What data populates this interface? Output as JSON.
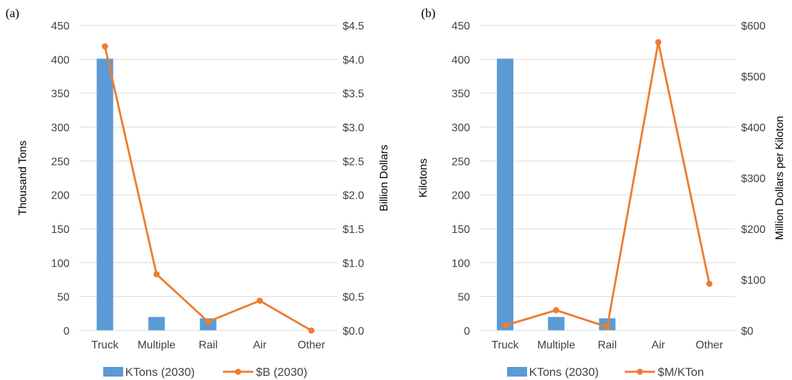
{
  "chart_data": [
    {
      "type": "bar",
      "panel_label": "(a)",
      "categories": [
        "Truck",
        "Multiple",
        "Rail",
        "Air",
        "Other"
      ],
      "series": [
        {
          "name": "KTons (2030)",
          "kind": "bar",
          "axis": "left",
          "color": "#5b9bd5",
          "values": [
            401,
            20,
            18,
            0,
            0
          ]
        },
        {
          "name": "$B (2030)",
          "kind": "line",
          "axis": "right",
          "color": "#ed7d31",
          "values": [
            4.19,
            0.83,
            0.13,
            0.44,
            0.0
          ]
        }
      ],
      "ylabel": "Thousand Tons",
      "y2label": "Billion Dollars",
      "ylim": [
        0,
        450
      ],
      "y2lim": [
        0,
        4.5
      ],
      "yticks": [
        "0",
        "50",
        "100",
        "150",
        "200",
        "250",
        "300",
        "350",
        "400",
        "450"
      ],
      "y2ticks": [
        "$0.0",
        "$0.5",
        "$1.0",
        "$1.5",
        "$2.0",
        "$2.5",
        "$3.0",
        "$3.5",
        "$4.0",
        "$4.5"
      ],
      "grid": true,
      "legend": "bottom"
    },
    {
      "type": "bar",
      "panel_label": "(b)",
      "categories": [
        "Truck",
        "Multiple",
        "Rail",
        "Air",
        "Other"
      ],
      "series": [
        {
          "name": "KTons (2030)",
          "kind": "bar",
          "axis": "left",
          "color": "#5b9bd5",
          "values": [
            401,
            20,
            18,
            0,
            0
          ]
        },
        {
          "name": "$M/KTon",
          "kind": "line",
          "axis": "right",
          "color": "#ed7d31",
          "values": [
            10,
            40,
            7,
            567,
            92
          ]
        }
      ],
      "ylabel": "Kilotons",
      "y2label": "Million Dollars per Kiloton",
      "ylim": [
        0,
        450
      ],
      "y2lim": [
        0,
        600
      ],
      "yticks": [
        "0",
        "50",
        "100",
        "150",
        "200",
        "250",
        "300",
        "350",
        "400",
        "450"
      ],
      "y2ticks": [
        "$0",
        "$100",
        "$200",
        "$300",
        "$400",
        "$500",
        "$600"
      ],
      "grid": true,
      "legend": "bottom"
    }
  ]
}
